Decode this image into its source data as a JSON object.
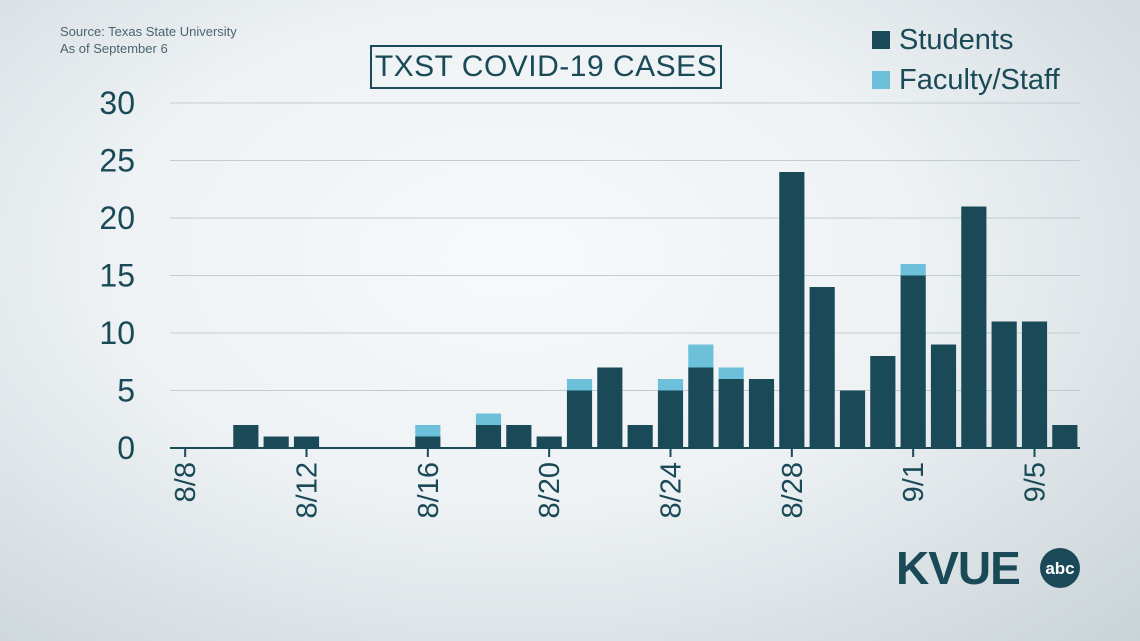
{
  "source_lines": [
    "Source: Texas State University",
    "As of September 6"
  ],
  "logo": {
    "text": "KVUE",
    "network": "abc"
  },
  "colors": {
    "students": "#1a4a57",
    "faculty": "#6cc0da",
    "axis_text": "#1a4a57",
    "grid": "#c3ccd1"
  },
  "chart_data": {
    "type": "bar",
    "stacked": true,
    "title": "TXST COVID-19 CASES",
    "legend_position": "top-right",
    "grid": true,
    "ylim": [
      0,
      30
    ],
    "yticks": [
      0,
      5,
      10,
      15,
      20,
      25,
      30
    ],
    "categories": [
      "8/8",
      "8/9",
      "8/10",
      "8/11",
      "8/12",
      "8/13",
      "8/14",
      "8/15",
      "8/16",
      "8/17",
      "8/18",
      "8/19",
      "8/20",
      "8/21",
      "8/22",
      "8/23",
      "8/24",
      "8/25",
      "8/26",
      "8/27",
      "8/28",
      "8/29",
      "8/30",
      "8/31",
      "9/1",
      "9/2",
      "9/3",
      "9/4",
      "9/5",
      "9/6"
    ],
    "xtick_labels": [
      "8/8",
      "8/12",
      "8/16",
      "8/20",
      "8/24",
      "8/28",
      "9/1",
      "9/5"
    ],
    "series": [
      {
        "name": "Students",
        "values": [
          0,
          0,
          2,
          1,
          1,
          0,
          0,
          0,
          1,
          0,
          2,
          2,
          1,
          5,
          7,
          2,
          5,
          7,
          6,
          6,
          24,
          14,
          5,
          8,
          15,
          9,
          21,
          11,
          11,
          2
        ]
      },
      {
        "name": "Faculty/Staff",
        "values": [
          0,
          0,
          0,
          0,
          0,
          0,
          0,
          0,
          1,
          0,
          1,
          0,
          0,
          1,
          0,
          0,
          1,
          2,
          1,
          0,
          0,
          0,
          0,
          0,
          1,
          0,
          0,
          0,
          0,
          0
        ]
      }
    ]
  }
}
